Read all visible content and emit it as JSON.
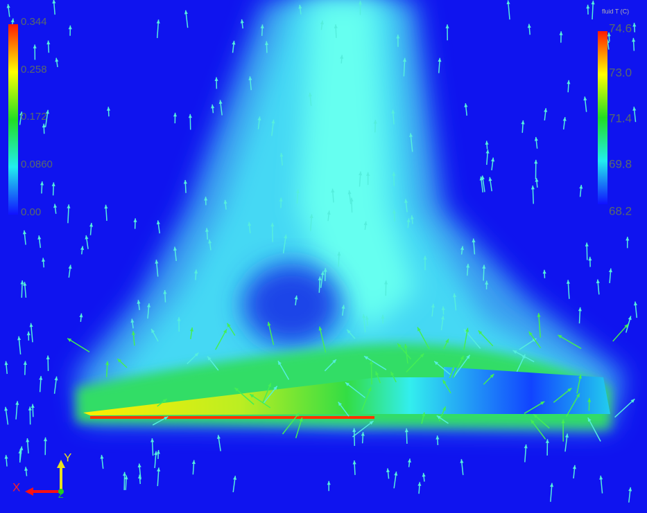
{
  "legends": [
    {
      "labels": [
        "0.344",
        "0.258",
        "0.172",
        "0.0860",
        "0.00"
      ]
    },
    {
      "title": "fluid T (C)",
      "labels": [
        "74.6",
        "73.0",
        "71.4",
        "69.8",
        "68.2"
      ]
    }
  ],
  "axes": {
    "x": "X",
    "y": "Y",
    "z": "Z"
  }
}
